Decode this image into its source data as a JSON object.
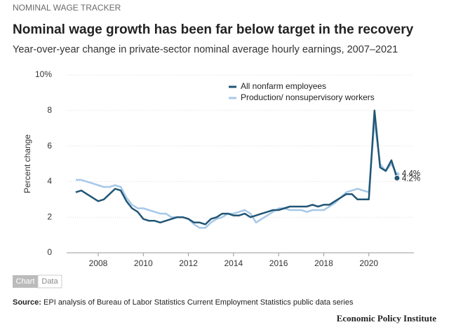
{
  "chart_data": {
    "type": "line",
    "kicker": "NOMINAL WAGE TRACKER",
    "title": "Nominal wage growth has been far below target in the recovery",
    "subtitle": "Year-over-year change in private-sector nominal average hourly earnings, 2007–2021",
    "y_label": "Percent change",
    "x": [
      2007,
      2007.25,
      2007.5,
      2007.75,
      2008,
      2008.25,
      2008.5,
      2008.75,
      2009,
      2009.25,
      2009.5,
      2009.75,
      2010,
      2010.25,
      2010.5,
      2010.75,
      2011,
      2011.25,
      2011.5,
      2011.75,
      2012,
      2012.25,
      2012.5,
      2012.75,
      2013,
      2013.25,
      2013.5,
      2013.75,
      2014,
      2014.25,
      2014.5,
      2014.75,
      2015,
      2015.25,
      2015.5,
      2015.75,
      2016,
      2016.25,
      2016.5,
      2016.75,
      2017,
      2017.25,
      2017.5,
      2017.75,
      2018,
      2018.25,
      2018.5,
      2018.75,
      2019,
      2019.25,
      2019.5,
      2019.75,
      2020,
      2020.25,
      2020.5,
      2020.75,
      2021,
      2021.25
    ],
    "series": [
      {
        "name": "Production/ nonsupervisory workers",
        "color": "#a6c8e8",
        "values": [
          4.1,
          4.1,
          4.0,
          3.9,
          3.8,
          3.7,
          3.7,
          3.8,
          3.7,
          3.1,
          2.7,
          2.5,
          2.5,
          2.4,
          2.3,
          2.2,
          2.2,
          2.0,
          2.0,
          2.0,
          1.9,
          1.6,
          1.4,
          1.4,
          1.7,
          1.9,
          2.0,
          2.2,
          2.2,
          2.3,
          2.4,
          2.2,
          1.7,
          1.9,
          2.1,
          2.3,
          2.5,
          2.5,
          2.4,
          2.4,
          2.4,
          2.3,
          2.4,
          2.4,
          2.4,
          2.6,
          2.8,
          3.1,
          3.4,
          3.5,
          3.6,
          3.5,
          3.4,
          7.4,
          5.0,
          4.6,
          5.0,
          4.4
        ]
      },
      {
        "name": "All nonfarm employees",
        "color": "#215675",
        "values": [
          3.4,
          3.5,
          3.3,
          3.1,
          2.9,
          3.0,
          3.3,
          3.6,
          3.5,
          2.9,
          2.5,
          2.3,
          1.9,
          1.8,
          1.8,
          1.7,
          1.8,
          1.9,
          2.0,
          2.0,
          1.9,
          1.7,
          1.7,
          1.6,
          1.9,
          2.0,
          2.2,
          2.2,
          2.1,
          2.1,
          2.2,
          2.0,
          2.1,
          2.2,
          2.3,
          2.4,
          2.4,
          2.5,
          2.6,
          2.6,
          2.6,
          2.6,
          2.7,
          2.6,
          2.7,
          2.7,
          2.9,
          3.1,
          3.3,
          3.3,
          3.0,
          3.0,
          3.0,
          8.0,
          4.8,
          4.6,
          5.2,
          4.2
        ]
      }
    ],
    "end_labels": [
      {
        "value": 4.4,
        "label": "4.4%"
      },
      {
        "value": 4.2,
        "label": "4.2%"
      }
    ],
    "xlim": [
      2006.6,
      2022
    ],
    "xticks": [
      2008,
      2010,
      2012,
      2014,
      2016,
      2018,
      2020
    ],
    "ylim": [
      0,
      10
    ],
    "yticks": [
      0,
      2,
      4,
      6,
      8,
      {
        "value": 10,
        "label": "10%"
      }
    ],
    "grid": true,
    "legend": "top",
    "tabs": [
      "Chart",
      "Data"
    ],
    "source_label": "Source:",
    "source": "EPI analysis of Bureau of Labor Statistics Current Employment Statistics public data series",
    "brand": "Economic Policy Institute"
  }
}
